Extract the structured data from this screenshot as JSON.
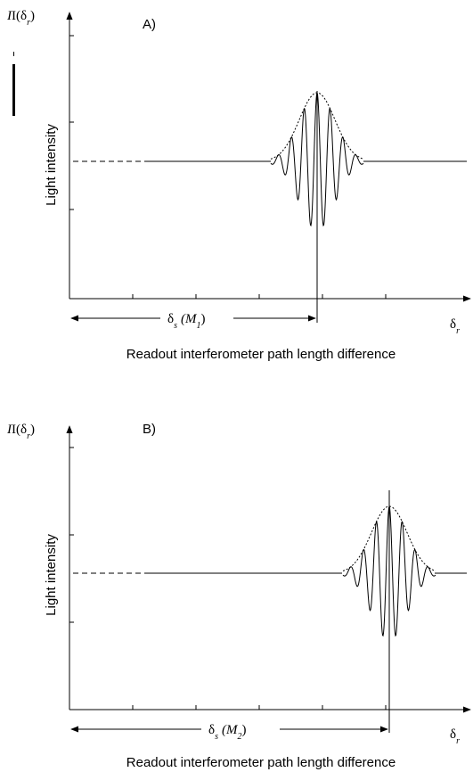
{
  "panels": [
    {
      "tag": "A)",
      "ylabel_main": "I(δ",
      "ylabel_sub": "r",
      "ylabel_close": ")",
      "side_label": "Light intensity",
      "delta_main": "δ",
      "delta_sub": "s",
      "m_open": "(M",
      "m_sub": "1",
      "m_close": ")",
      "xaxis_main": "δ",
      "xaxis_sub": "r",
      "caption": "Readout interferometer path length difference"
    },
    {
      "tag": "B)",
      "ylabel_main": "I(δ",
      "ylabel_sub": "r",
      "ylabel_close": ")",
      "side_label": "Light intensity",
      "delta_main": "δ",
      "delta_sub": "s",
      "m_open": "(M",
      "m_sub": "2",
      "m_close": ")",
      "xaxis_main": "δ",
      "xaxis_sub": "r",
      "caption": "Readout interferometer path length difference"
    }
  ]
}
